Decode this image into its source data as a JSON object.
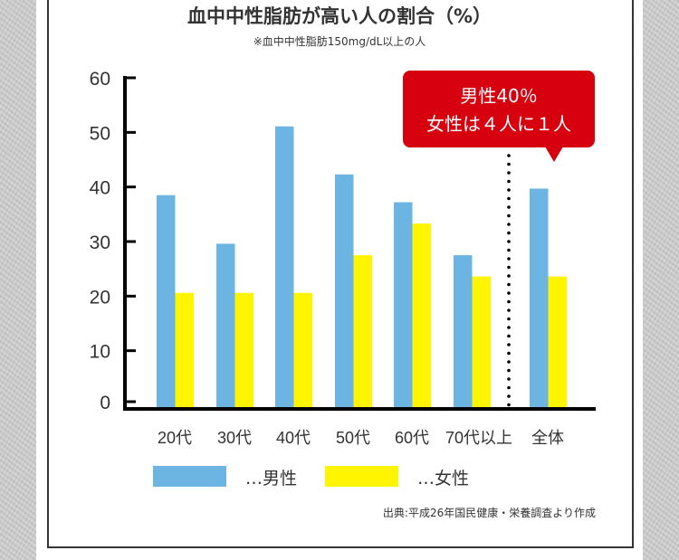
{
  "title": "血中中性脂肪が高い人の割合（%）",
  "subtitle": "※血中中性脂肪150mg/dL以上の人",
  "source": "出典:平成26年国民健康・栄養調査より作成",
  "callout": {
    "line1": "男性40％",
    "line2": "女性は４人に１人",
    "color": "#d7000f"
  },
  "chart_data": {
    "type": "bar",
    "categories": [
      "20代",
      "30代",
      "40代",
      "50代",
      "60代",
      "70代以上",
      "全体"
    ],
    "series": [
      {
        "name": "…男性",
        "color": "#6cb5e2",
        "values": [
          38.5,
          29.6,
          51.1,
          42.3,
          37.2,
          27.5,
          39.7
        ]
      },
      {
        "name": "…女性",
        "color": "#fff500",
        "values": [
          20.6,
          20.6,
          20.6,
          27.5,
          33.3,
          23.6,
          23.6
        ]
      }
    ],
    "yticks": [
      0,
      10,
      20,
      30,
      40,
      50,
      60
    ],
    "ylim": [
      0,
      60
    ],
    "grid": false,
    "legend": "bottom"
  }
}
